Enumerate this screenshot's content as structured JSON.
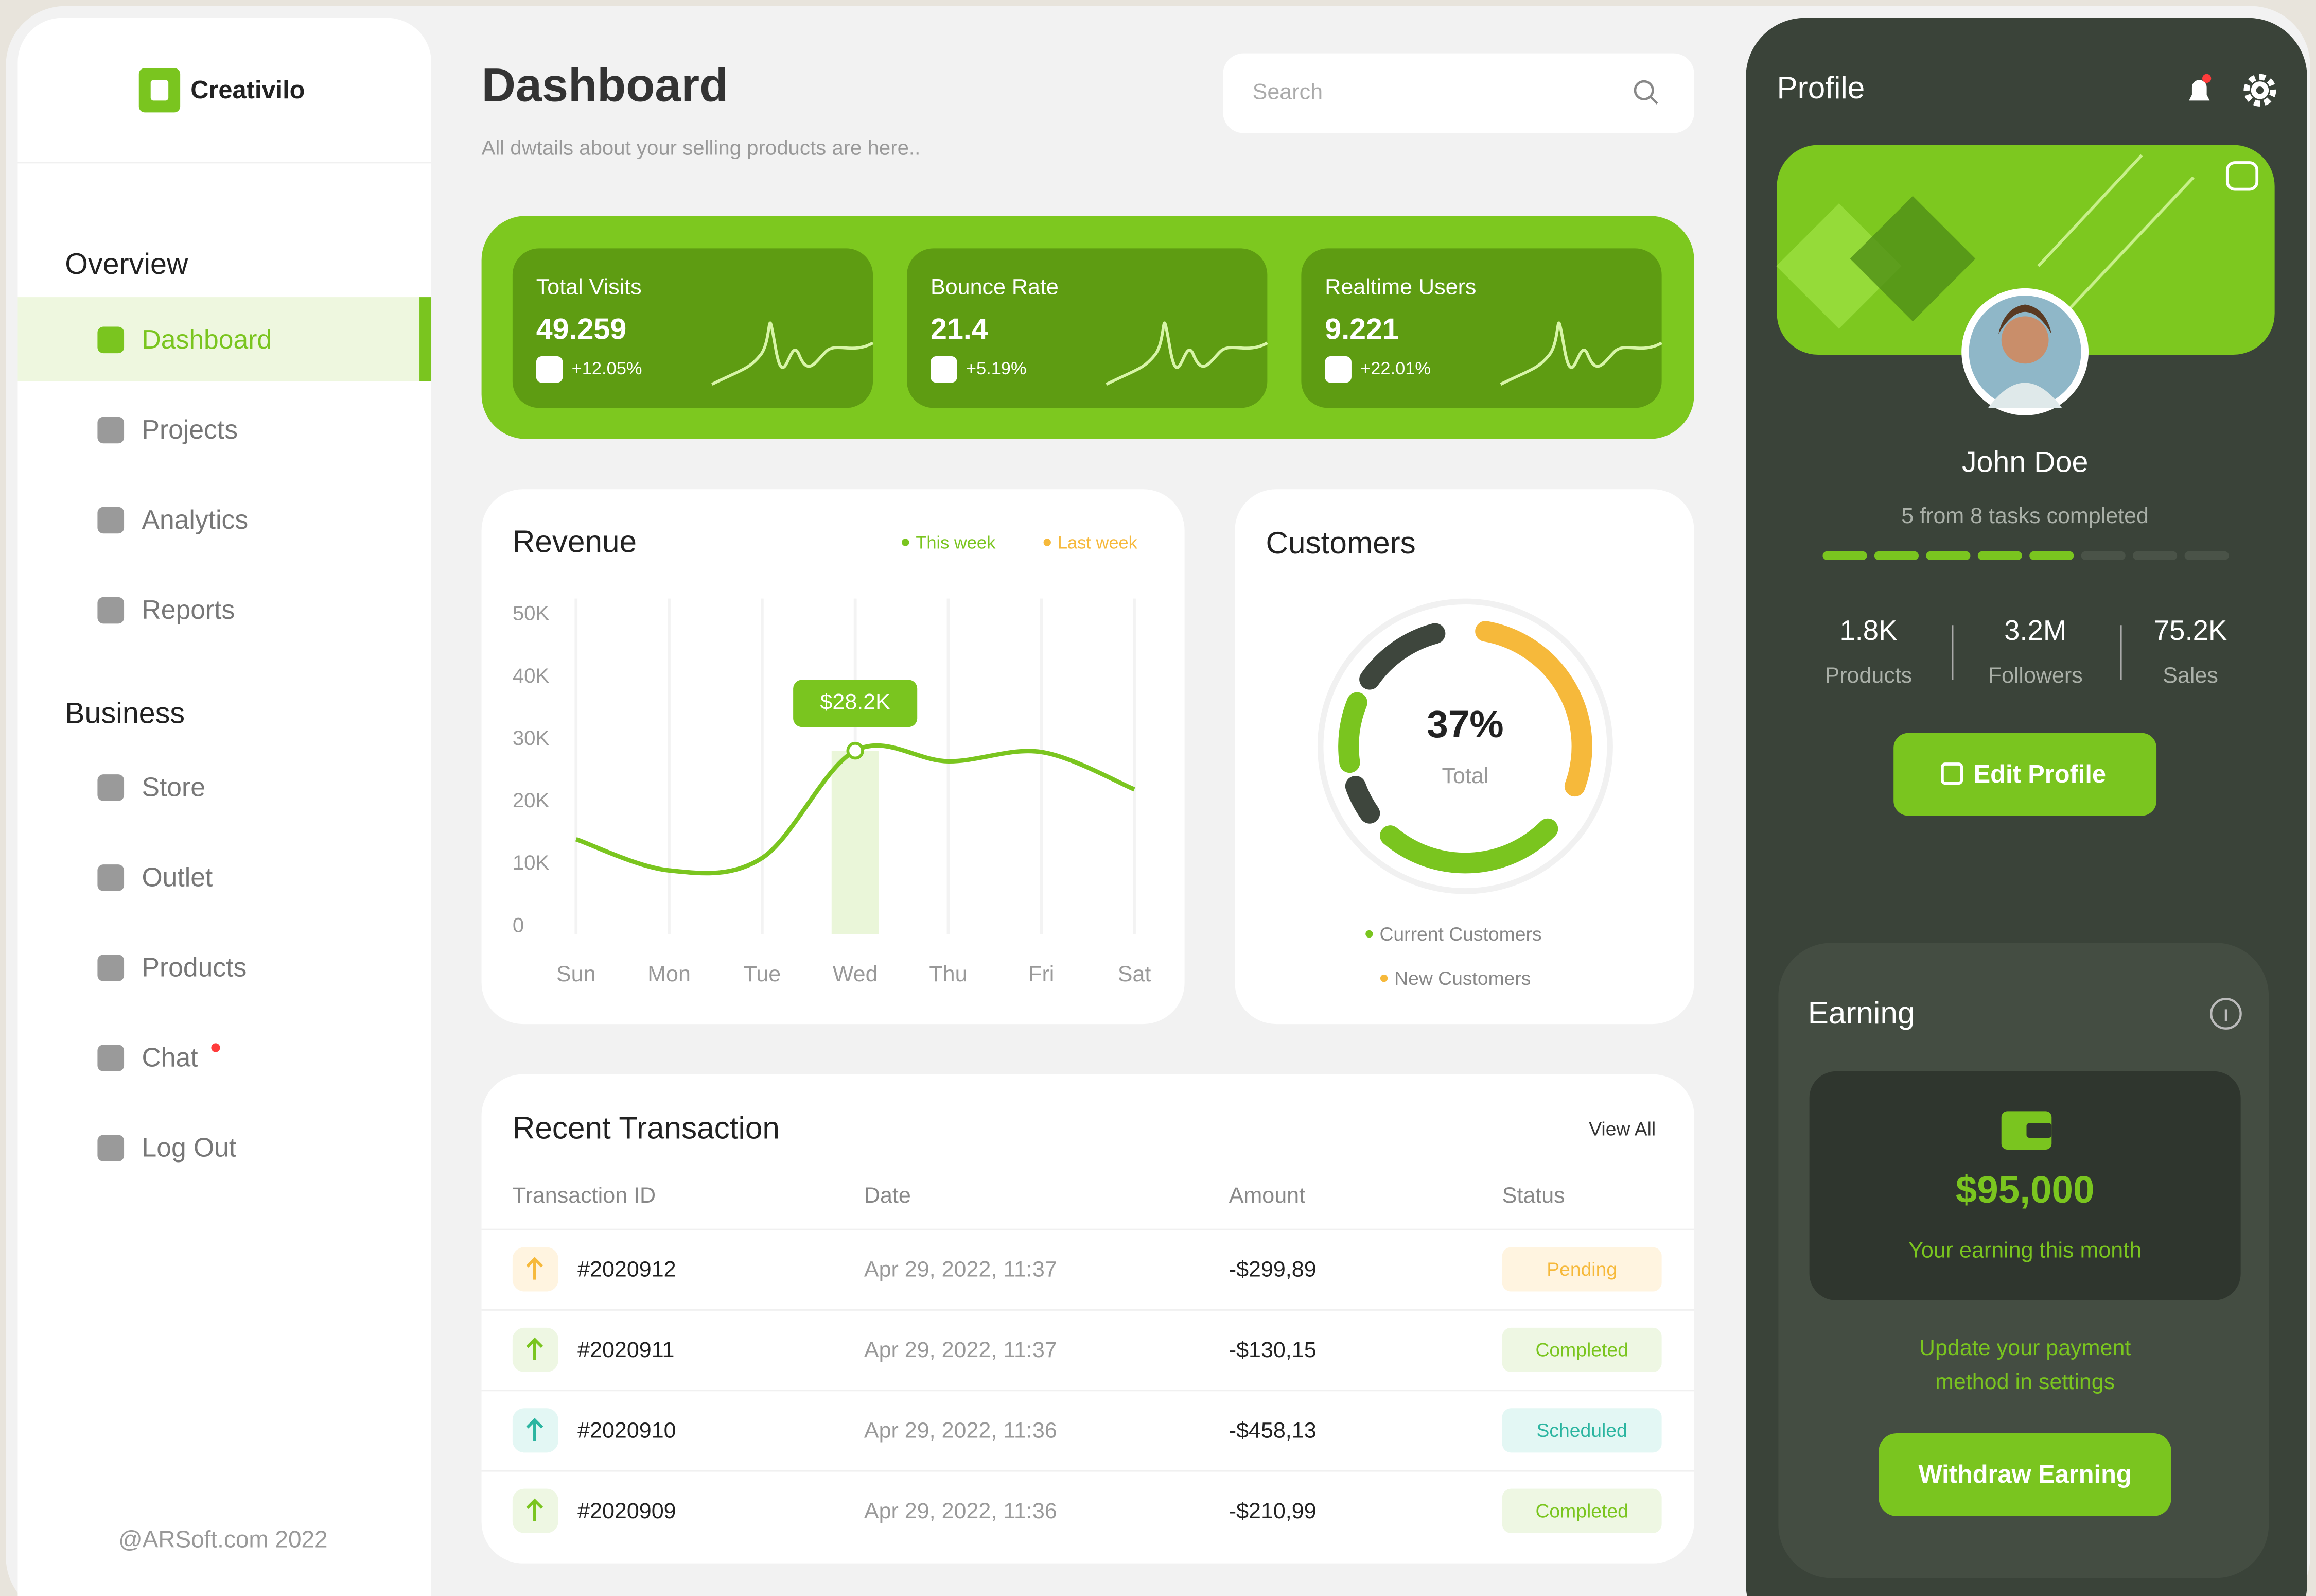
{
  "sidebar": {
    "brand": "Creativilo",
    "sections": [
      {
        "title": "Overview",
        "items": [
          "Dashboard",
          "Projects",
          "Analytics",
          "Reports"
        ]
      },
      {
        "title": "Business",
        "items": [
          "Store",
          "Outlet",
          "Products",
          "Chat",
          "Log Out"
        ]
      }
    ],
    "footer": "@ARSoft.com 2022"
  },
  "header": {
    "title": "Dashboard",
    "subtitle": "All dwtails about your selling products are here..",
    "search": "Search"
  },
  "stats": [
    {
      "label": "Total Visits",
      "value": "49.259",
      "change": "+12.05%"
    },
    {
      "label": "Bounce Rate",
      "value": "21.4",
      "change": "+5.19%"
    },
    {
      "label": "Realtime Users",
      "value": "9.221",
      "change": "+22.01%"
    }
  ],
  "chart_data": {
    "type": "line",
    "title": "Revenue",
    "categories": [
      "Sun",
      "Mon",
      "Tue",
      "Wed",
      "Thu",
      "Fri",
      "Sat"
    ],
    "series": [
      {
        "name": "This week",
        "color": "#7ac51f",
        "values": [
          14000,
          9000,
          11000,
          28200,
          26500,
          28000,
          22000
        ]
      },
      {
        "name": "Last week",
        "color": "#f6b93b",
        "values": [
          null,
          null,
          null,
          null,
          null,
          null,
          null
        ]
      }
    ],
    "value_labels": [
      null,
      null,
      null,
      "$28.2K",
      null,
      null,
      null
    ],
    "ylim": [
      0,
      50000
    ],
    "yticks": [
      0,
      {
        "value": 10000,
        "label": "10K"
      },
      {
        "value": 20000,
        "label": "20K"
      },
      {
        "value": 30000,
        "label": "30K"
      },
      {
        "value": 40000,
        "label": "40K"
      },
      {
        "value": 50000,
        "label": "50K"
      }
    ],
    "grid": true
  },
  "customers": {
    "title": "Customers",
    "total": "37%",
    "total_label": "Total",
    "legend": [
      "Current Customers",
      "New Customers"
    ]
  },
  "transactions": {
    "title": "Recent Transaction",
    "view_all": "View All",
    "columns": [
      "Transaction ID",
      "Date",
      "Amount",
      "Status"
    ],
    "rows": [
      [
        "#2020912",
        "Apr 29, 2022, 11:37",
        "-$299,89",
        "Pending"
      ],
      [
        "#2020911",
        "Apr 29, 2022, 11:37",
        "-$130,15",
        "Completed"
      ],
      [
        "#2020910",
        "Apr 29, 2022, 11:36",
        "-$458,13",
        "Scheduled"
      ],
      [
        "#2020909",
        "Apr 29, 2022, 11:36",
        "-$210,99",
        "Completed"
      ]
    ]
  },
  "profile": {
    "title": "Profile",
    "name": "John Doe",
    "tasks": "5 from 8 tasks completed",
    "stats": [
      {
        "value": "1.8K",
        "label": "Products"
      },
      {
        "value": "3.2M",
        "label": "Followers"
      },
      {
        "value": "75.2K",
        "label": "Sales"
      }
    ],
    "button": "Edit Profile"
  },
  "earning": {
    "title": "Earning",
    "amount": "$95,000",
    "caption": "Your earning this month",
    "note": [
      "Update your payment",
      "method in settings"
    ],
    "button": "Withdraw Earning"
  }
}
